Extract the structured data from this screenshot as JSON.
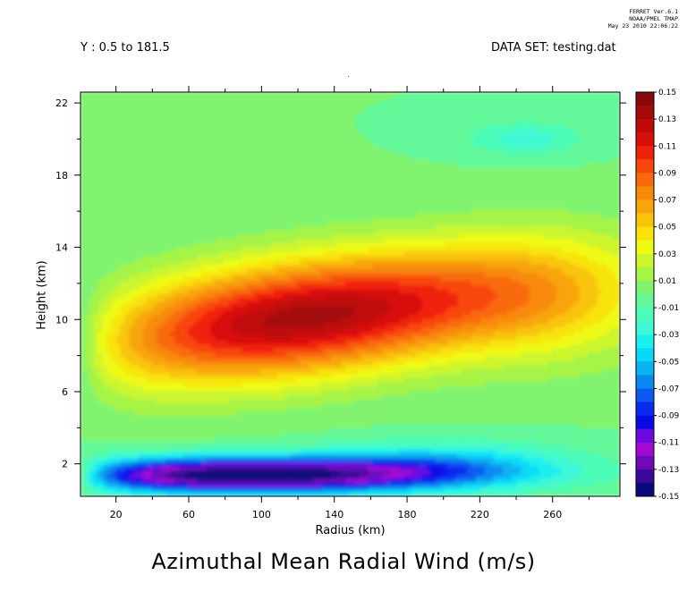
{
  "header": {
    "ferret_lines": [
      "FERRET Ver.6.1",
      "NOAA/PMEL TMAP",
      "May 23 2010 22:06:22"
    ],
    "y_range_label": "Y : 0.5 to 181.5",
    "dataset_label": "DATA SET: testing.dat",
    "dot": "."
  },
  "chart_data": {
    "type": "heatmap",
    "title": "Azimuthal Mean Radial Wind (m/s)",
    "xlabel": "Radius (km)",
    "ylabel": "Height (km)",
    "xlim": [
      0.5,
      297
    ],
    "ylim": [
      0.2,
      22.6
    ],
    "x_ticks": [
      20,
      60,
      100,
      140,
      180,
      220,
      260
    ],
    "y_ticks": [
      2,
      6,
      10,
      14,
      18,
      22
    ],
    "levels": [
      -0.15,
      -0.14,
      -0.13,
      -0.12,
      -0.11,
      -0.1,
      -0.09,
      -0.08,
      -0.07,
      -0.06,
      -0.05,
      -0.04,
      -0.03,
      -0.02,
      -0.01,
      0.0,
      0.01,
      0.02,
      0.03,
      0.04,
      0.05,
      0.06,
      0.07,
      0.08,
      0.09,
      0.1,
      0.11,
      0.12,
      0.13,
      0.14,
      0.15
    ],
    "colorbar_labels": [
      "0.15",
      "0.13",
      "0.11",
      "0.09",
      "0.07",
      "0.05",
      "0.03",
      "0.01",
      "-0.01",
      "-0.03",
      "-0.05",
      "-0.07",
      "-0.09",
      "-0.11",
      "-0.13",
      "-0.15"
    ],
    "colors": [
      "#0a0a7a",
      "#3a0a9a",
      "#6e0aba",
      "#a00ad2",
      "#6a0ae0",
      "#0a0ae6",
      "#0a2af0",
      "#0a5af0",
      "#0a88f0",
      "#0ab2f0",
      "#0ad8f8",
      "#1af0ee",
      "#40f8d6",
      "#4cfcb8",
      "#62f89a",
      "#80f46e",
      "#a6f446",
      "#ccf62e",
      "#eefa14",
      "#f8e40a",
      "#f8c40a",
      "#f8a40a",
      "#f88a0a",
      "#f86a0a",
      "#f8460a",
      "#f0200a",
      "#d8100a",
      "#c00a0a",
      "#a40a0a",
      "#880a0a"
    ],
    "features": [
      {
        "type": "positive_maximum",
        "x": 115,
        "y": 9.2,
        "value": 0.12
      },
      {
        "type": "negative_minimum",
        "x": 78,
        "y": 1.4,
        "value": -0.13
      },
      {
        "type": "weak_negative",
        "x": 240,
        "y": 20.0,
        "value": -0.02
      }
    ]
  }
}
